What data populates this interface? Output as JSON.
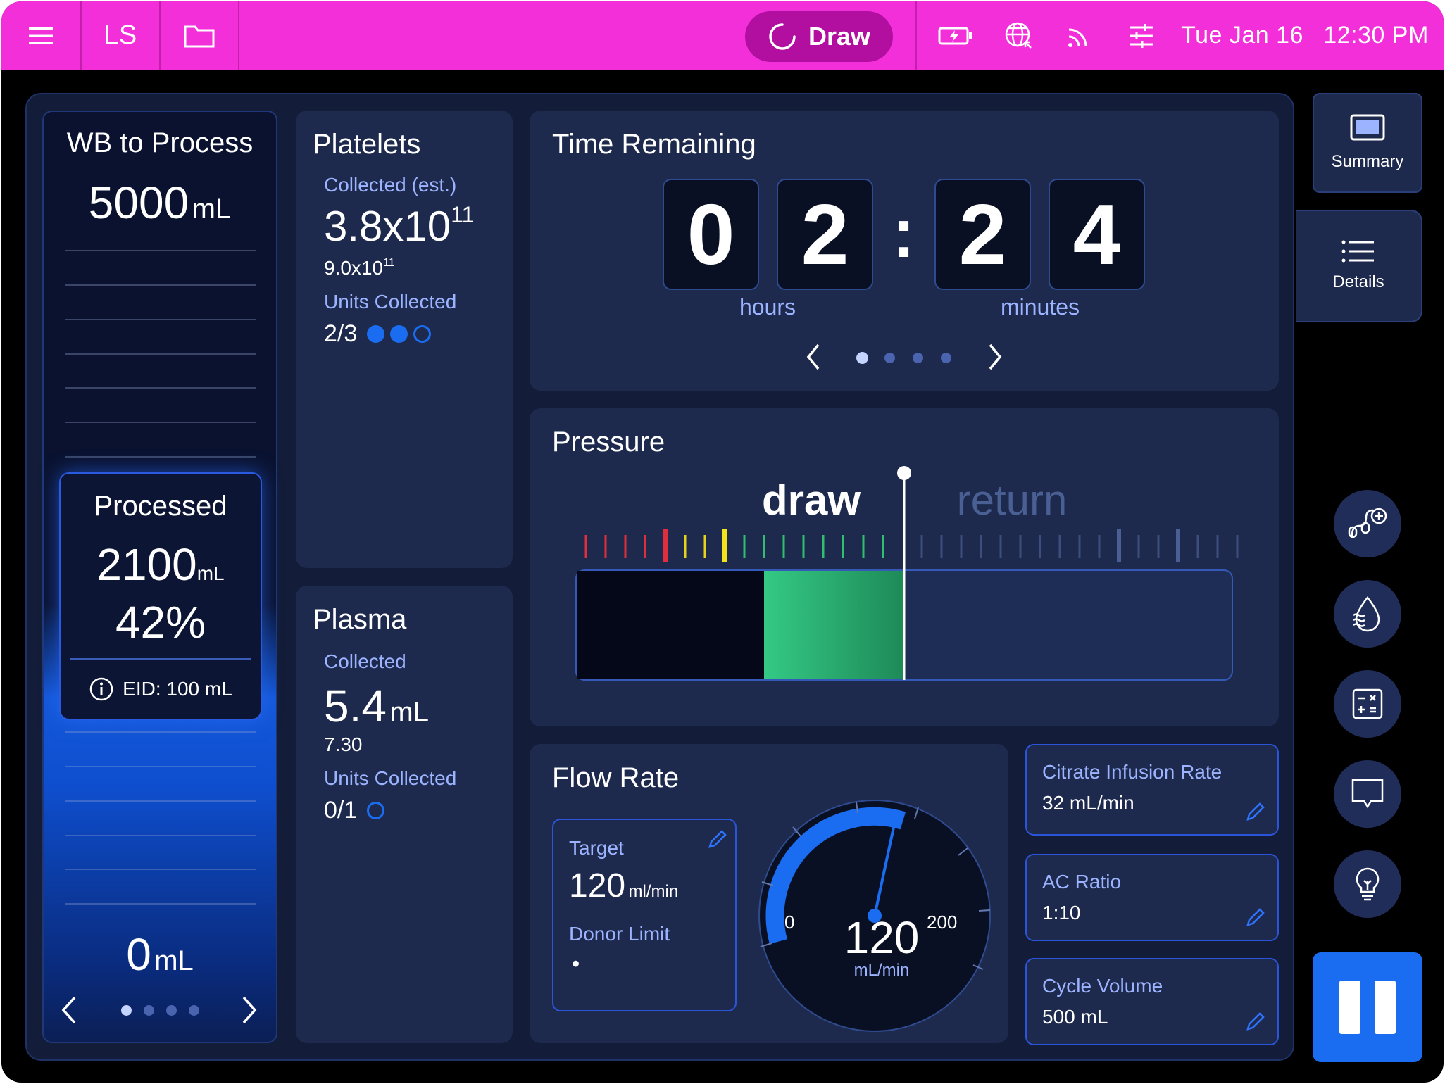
{
  "topbar": {
    "initials": "LS",
    "mode": "Draw",
    "date": "Tue Jan 16",
    "time": "12:30 PM"
  },
  "wb": {
    "title": "WB to Process",
    "total_value": "5000",
    "total_unit": "mL",
    "processed_label": "Processed",
    "processed_value": "2100",
    "processed_unit": "mL",
    "processed_pct": "42%",
    "processed_fraction": 0.42,
    "eid": "EID: 100 mL",
    "bottom_value": "0",
    "bottom_unit": "mL",
    "pages": 4,
    "active_page": 1
  },
  "platelets": {
    "title": "Platelets",
    "collected_label": "Collected (est.)",
    "collected_value": "3.8x10",
    "collected_exp": "11",
    "target_value": "9.0x10",
    "target_exp": "11",
    "units_label": "Units Collected",
    "units_value": "2/3",
    "units_filled": 2,
    "units_total": 3
  },
  "plasma": {
    "title": "Plasma",
    "collected_label": "Collected",
    "collected_value": "5.4",
    "collected_unit": "mL",
    "target_value": "7.30",
    "units_label": "Units Collected",
    "units_value": "0/1",
    "units_filled": 0,
    "units_total": 1
  },
  "time_remaining": {
    "title": "Time Remaining",
    "digits": [
      "0",
      "2",
      "2",
      "4"
    ],
    "separator": ":",
    "hours_label": "hours",
    "minutes_label": "minutes",
    "pages": 4,
    "active_page": 1
  },
  "pressure": {
    "title": "Pressure",
    "draw_label": "draw",
    "return_label": "return"
  },
  "flow_rate": {
    "title": "Flow Rate",
    "target_label": "Target",
    "target_value": "120",
    "target_unit": "ml/min",
    "donor_limit_label": "Donor Limit",
    "donor_limit_value": "•",
    "gauge_value": "120",
    "gauge_unit": "mL/min",
    "gauge_min": "0",
    "gauge_max": "200",
    "gauge_fraction": 0.6
  },
  "params": [
    {
      "label": "Citrate Infusion Rate",
      "value": "32 mL/min"
    },
    {
      "label": "AC Ratio",
      "value": "1:10"
    },
    {
      "label": "Cycle Volume",
      "value": "500 mL"
    }
  ],
  "side": {
    "summary_label": "Summary",
    "details_label": "Details",
    "buttons": [
      "procedure-icon",
      "fluid-icon",
      "calculator-icon",
      "message-icon",
      "lightbulb-icon"
    ]
  },
  "colors": {
    "topbar": "#f22fd9",
    "accent": "#1a6df0",
    "panel": "#1d2a4d"
  }
}
